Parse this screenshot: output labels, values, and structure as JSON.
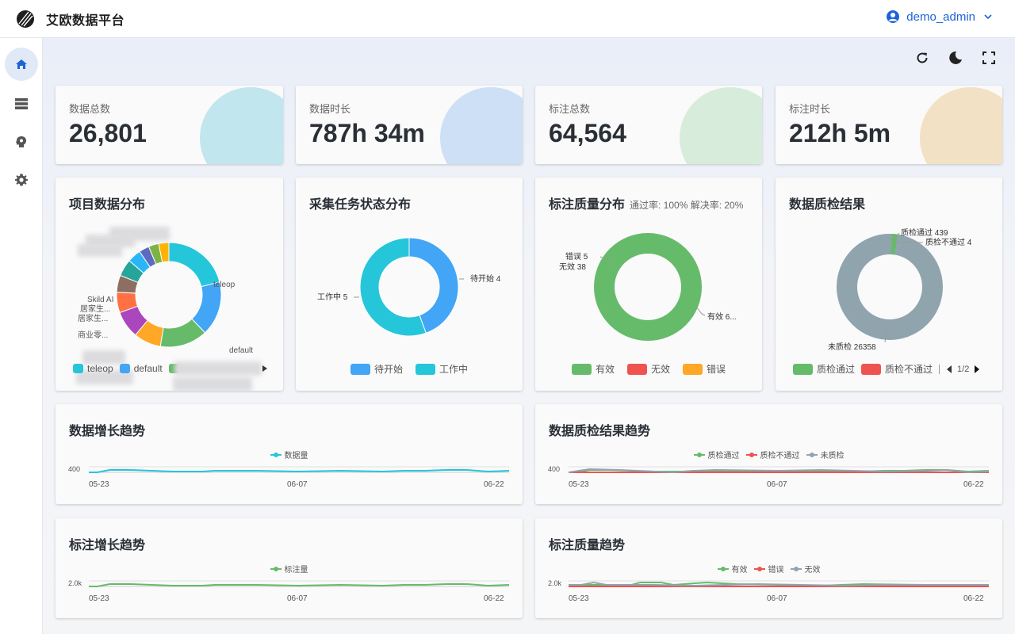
{
  "app": {
    "title": "艾欧数据平台"
  },
  "user": {
    "name": "demo_admin"
  },
  "sidebar": {
    "items": [
      {
        "icon": "home-icon"
      },
      {
        "icon": "storage-icon"
      },
      {
        "icon": "brain-icon"
      },
      {
        "icon": "gear-icon"
      }
    ]
  },
  "toolbar": {
    "icons": [
      "refresh-icon",
      "dark-mode-icon",
      "fullscreen-icon"
    ]
  },
  "stats": [
    {
      "label": "数据总数",
      "value": "26,801",
      "color": "#c2e6ee"
    },
    {
      "label": "数据时长",
      "value": "787h 34m",
      "color": "#cde0f6"
    },
    {
      "label": "标注总数",
      "value": "64,564",
      "color": "#d8ecdc"
    },
    {
      "label": "标注时长",
      "value": "212h 5m",
      "color": "#f3e1c6"
    }
  ],
  "project_chart": {
    "title": "项目数据分布",
    "labels": {
      "teleop": "teleop",
      "default": "default",
      "skild": "Skild AI",
      "home1": "居家生...",
      "home2": "居家生...",
      "commerce": "商业零..."
    },
    "legend": [
      "teleop",
      "default"
    ],
    "colors": [
      "#26c6da",
      "#42a5f5",
      "#66bb6a",
      "#ffa726",
      "#ab47bc",
      "#ff7043",
      "#8d6e63",
      "#26a69a",
      "#29b6f6",
      "#5c6bc0",
      "#7cb342",
      "#ffb300"
    ]
  },
  "collect_chart": {
    "title": "采集任务状态分布",
    "slices": [
      {
        "name": "待开始",
        "value": 4,
        "color": "#42a5f5"
      },
      {
        "name": "工作中",
        "value": 5,
        "color": "#26c6da"
      }
    ],
    "label_pending": "待开始 4",
    "label_working": "工作中 5"
  },
  "quality_chart": {
    "title": "标注质量分布",
    "subtitle": "通过率: 100% 解决率: 20%",
    "label_error": "错误 5",
    "label_invalid": "无效 38",
    "label_valid": "有效 6...",
    "legend": [
      {
        "name": "有效",
        "color": "#66bb6a"
      },
      {
        "name": "无效",
        "color": "#ef5350"
      },
      {
        "name": "错误",
        "color": "#ffa726"
      }
    ]
  },
  "inspect_chart": {
    "title": "数据质检结果",
    "label_pass": "质检通过 439",
    "label_fail": "质检不通过 4",
    "label_unchecked": "未质检 26358",
    "legend": [
      {
        "name": "质检通过",
        "color": "#66bb6a"
      },
      {
        "name": "质检不通过",
        "color": "#ef5350"
      }
    ],
    "pager": "1/2"
  },
  "trends": [
    {
      "title": "数据增长趋势",
      "ytick": "400",
      "x_start": "05-23",
      "x_mid": "06-07",
      "x_end": "06-22",
      "series": [
        {
          "name": "数据量",
          "color": "#26c6da"
        }
      ]
    },
    {
      "title": "数据质检结果趋势",
      "ytick": "400",
      "x_start": "05-23",
      "x_mid": "06-07",
      "x_end": "06-22",
      "series": [
        {
          "name": "质检通过",
          "color": "#66bb6a"
        },
        {
          "name": "质检不通过",
          "color": "#ef5350"
        },
        {
          "name": "未质检",
          "color": "#90a4ae"
        }
      ]
    },
    {
      "title": "标注增长趋势",
      "ytick": "2.0k",
      "x_start": "05-23",
      "x_mid": "06-07",
      "x_end": "06-22",
      "series": [
        {
          "name": "标注量",
          "color": "#66bb6a"
        }
      ]
    },
    {
      "title": "标注质量趋势",
      "ytick": "2.0k",
      "x_start": "05-23",
      "x_mid": "06-07",
      "x_end": "06-22",
      "series": [
        {
          "name": "有效",
          "color": "#66bb6a"
        },
        {
          "name": "错误",
          "color": "#ef5350"
        },
        {
          "name": "无效",
          "color": "#90a4ae"
        }
      ]
    }
  ]
}
